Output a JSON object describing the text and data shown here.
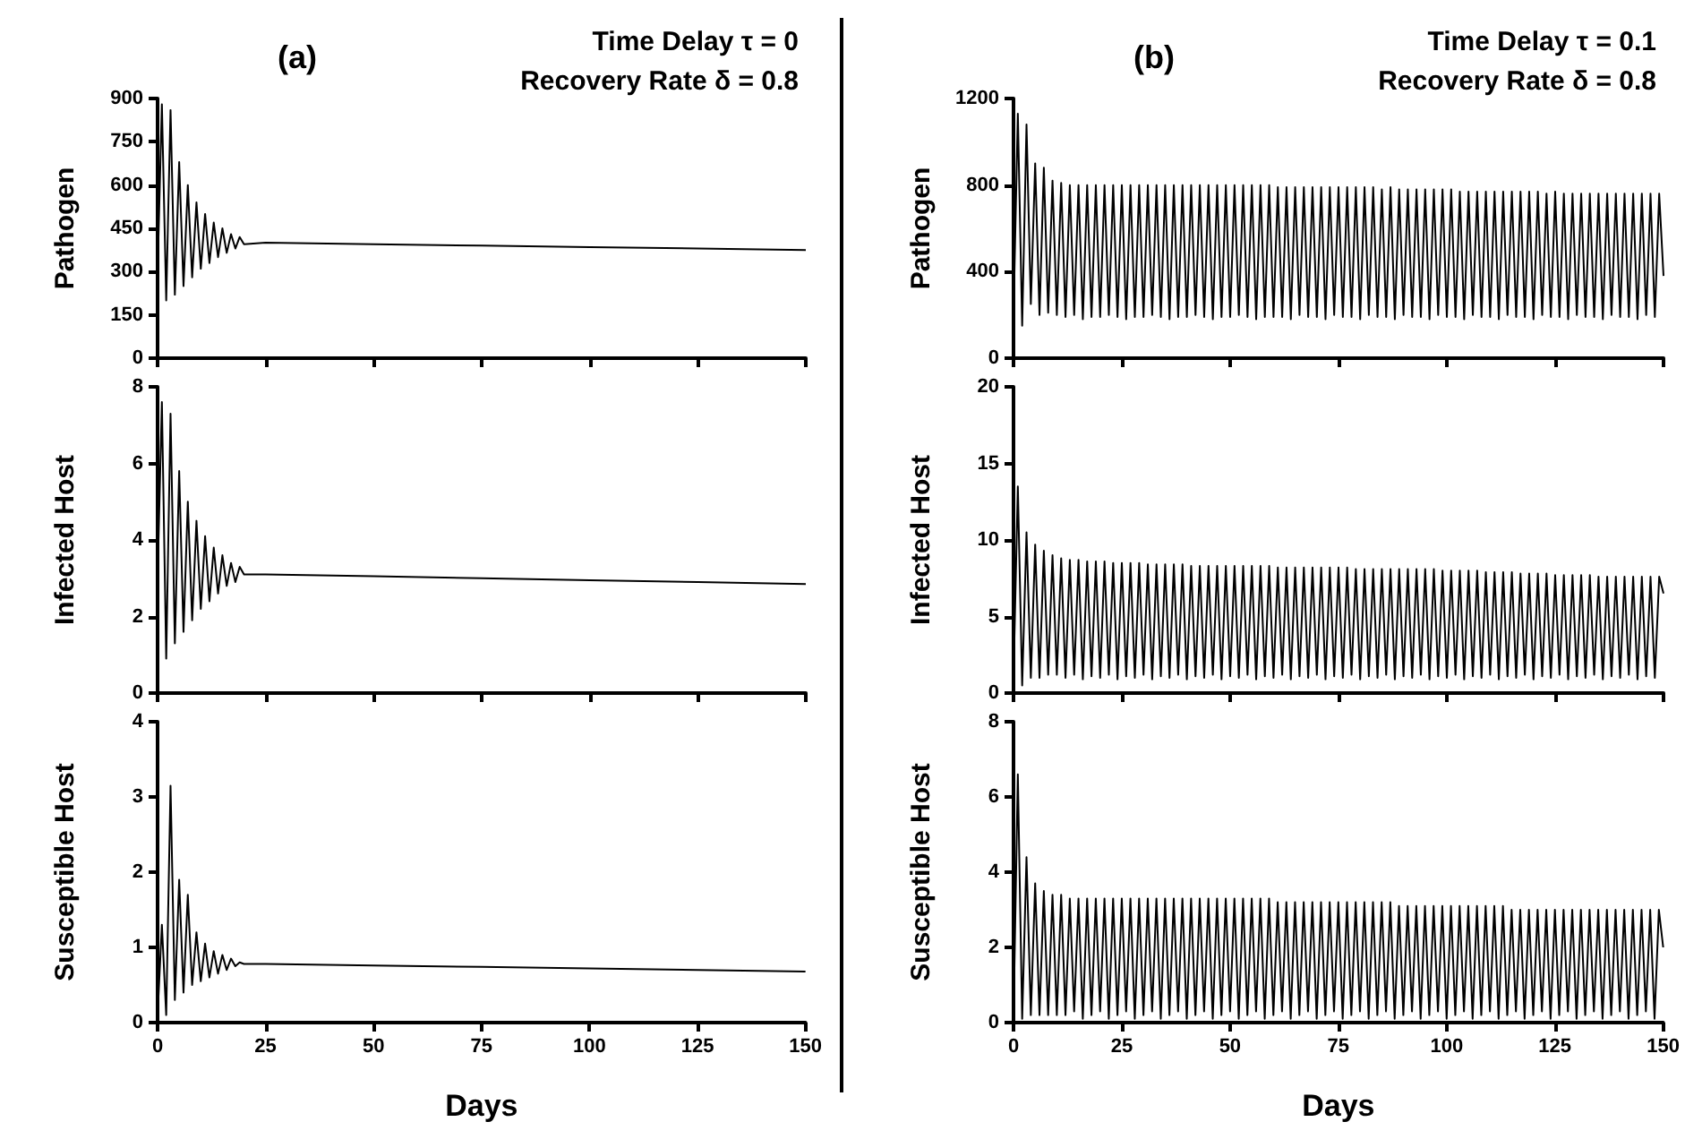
{
  "chart_data": [
    {
      "type": "line",
      "title": "(a)",
      "annotations": [
        "Time Delay τ = 0",
        "Recovery Rate δ = 0.8"
      ],
      "ylabel": "Pathogen",
      "xlim": [
        0,
        150
      ],
      "xticks": [
        0,
        25,
        50,
        75,
        100,
        125,
        150
      ],
      "ylim": [
        0,
        900
      ],
      "yticks": [
        0,
        150,
        300,
        450,
        600,
        750,
        900
      ],
      "tick_labels": "y",
      "series": [
        {
          "color": "#000000",
          "x": [
            0,
            1,
            2,
            3,
            4,
            5,
            6,
            7,
            8,
            9,
            10,
            11,
            12,
            13,
            14,
            15,
            16,
            17,
            18,
            19,
            20,
            25,
            50,
            75,
            100,
            125,
            150
          ],
          "values": [
            300,
            880,
            200,
            860,
            220,
            680,
            250,
            600,
            280,
            540,
            310,
            500,
            330,
            470,
            350,
            450,
            365,
            430,
            380,
            420,
            395,
            400,
            395,
            390,
            385,
            380,
            375
          ]
        }
      ]
    },
    {
      "type": "line",
      "title": "(b)",
      "annotations": [
        "Time Delay τ = 0.1",
        "Recovery Rate δ = 0.8"
      ],
      "ylabel": "Pathogen",
      "xlim": [
        0,
        150
      ],
      "xticks": [
        0,
        25,
        50,
        75,
        100,
        125,
        150
      ],
      "ylim": [
        0,
        1200
      ],
      "yticks": [
        0,
        400,
        800,
        1200
      ],
      "tick_labels": "y",
      "series": [
        {
          "color": "#000000",
          "x": [
            0,
            1,
            2,
            3,
            4,
            5,
            6,
            7,
            8,
            9,
            10,
            11,
            12,
            13,
            14,
            15,
            16,
            17,
            18,
            19,
            20,
            21,
            22,
            23,
            24,
            25,
            26,
            27,
            28,
            29,
            30,
            31,
            32,
            33,
            34,
            35,
            36,
            37,
            38,
            39,
            40,
            41,
            42,
            43,
            44,
            45,
            46,
            47,
            48,
            49,
            50,
            51,
            52,
            53,
            54,
            55,
            56,
            57,
            58,
            59,
            60,
            61,
            62,
            63,
            64,
            65,
            66,
            67,
            68,
            69,
            70,
            71,
            72,
            73,
            74,
            75,
            76,
            77,
            78,
            79,
            80,
            81,
            82,
            83,
            84,
            85,
            86,
            87,
            88,
            89,
            90,
            91,
            92,
            93,
            94,
            95,
            96,
            97,
            98,
            99,
            100,
            101,
            102,
            103,
            104,
            105,
            106,
            107,
            108,
            109,
            110,
            111,
            112,
            113,
            114,
            115,
            116,
            117,
            118,
            119,
            120,
            121,
            122,
            123,
            124,
            125,
            126,
            127,
            128,
            129,
            130,
            131,
            132,
            133,
            134,
            135,
            136,
            137,
            138,
            139,
            140,
            141,
            142,
            143,
            144,
            145,
            146,
            147,
            148,
            149,
            150
          ],
          "values": [
            200,
            1130,
            150,
            1080,
            250,
            900,
            200,
            880,
            210,
            820,
            200,
            810,
            190,
            800,
            200,
            800,
            180,
            800,
            190,
            800,
            190,
            800,
            200,
            800,
            190,
            800,
            180,
            800,
            190,
            800,
            190,
            800,
            200,
            800,
            190,
            800,
            180,
            800,
            190,
            800,
            190,
            800,
            200,
            800,
            190,
            800,
            180,
            800,
            190,
            800,
            190,
            800,
            200,
            800,
            190,
            800,
            180,
            800,
            190,
            800,
            190,
            790,
            190,
            790,
            180,
            790,
            200,
            790,
            190,
            790,
            190,
            790,
            180,
            790,
            200,
            790,
            190,
            790,
            190,
            790,
            180,
            790,
            200,
            790,
            190,
            780,
            190,
            790,
            180,
            780,
            200,
            780,
            190,
            780,
            190,
            780,
            180,
            780,
            200,
            780,
            190,
            780,
            190,
            770,
            180,
            770,
            200,
            770,
            190,
            770,
            190,
            770,
            180,
            770,
            200,
            770,
            190,
            770,
            190,
            770,
            180,
            770,
            200,
            760,
            190,
            770,
            190,
            760,
            180,
            760,
            200,
            760,
            190,
            760,
            190,
            760,
            180,
            760,
            200,
            760,
            190,
            760,
            190,
            760,
            180,
            760,
            200,
            760,
            190,
            760,
            380
          ]
        }
      ]
    },
    {
      "type": "line",
      "ylabel": "Infected Host",
      "xlim": [
        0,
        150
      ],
      "xticks": [
        0,
        25,
        50,
        75,
        100,
        125,
        150
      ],
      "ylim": [
        0,
        8
      ],
      "yticks": [
        0,
        2,
        4,
        6,
        8
      ],
      "tick_labels": "y",
      "series": [
        {
          "color": "#000000",
          "x": [
            0,
            1,
            2,
            3,
            4,
            5,
            6,
            7,
            8,
            9,
            10,
            11,
            12,
            13,
            14,
            15,
            16,
            17,
            18,
            19,
            20,
            25,
            50,
            75,
            100,
            125,
            150
          ],
          "values": [
            3,
            7.6,
            0.9,
            7.3,
            1.3,
            5.8,
            1.6,
            5.0,
            1.9,
            4.5,
            2.2,
            4.1,
            2.4,
            3.8,
            2.6,
            3.6,
            2.8,
            3.4,
            2.9,
            3.3,
            3.1,
            3.1,
            3.05,
            3.0,
            2.95,
            2.9,
            2.85
          ]
        }
      ]
    },
    {
      "type": "line",
      "ylabel": "Infected Host",
      "xlim": [
        0,
        150
      ],
      "xticks": [
        0,
        25,
        50,
        75,
        100,
        125,
        150
      ],
      "ylim": [
        0,
        20
      ],
      "yticks": [
        0,
        5,
        10,
        15,
        20
      ],
      "tick_labels": "y",
      "series": [
        {
          "color": "#000000",
          "x": [
            0,
            1,
            2,
            3,
            4,
            5,
            6,
            7,
            8,
            9,
            10,
            11,
            12,
            13,
            14,
            15,
            16,
            17,
            18,
            19,
            20,
            21,
            22,
            23,
            24,
            25,
            26,
            27,
            28,
            29,
            30,
            31,
            32,
            33,
            34,
            35,
            36,
            37,
            38,
            39,
            40,
            41,
            42,
            43,
            44,
            45,
            46,
            47,
            48,
            49,
            50,
            51,
            52,
            53,
            54,
            55,
            56,
            57,
            58,
            59,
            60,
            61,
            62,
            63,
            64,
            65,
            66,
            67,
            68,
            69,
            70,
            71,
            72,
            73,
            74,
            75,
            76,
            77,
            78,
            79,
            80,
            81,
            82,
            83,
            84,
            85,
            86,
            87,
            88,
            89,
            90,
            91,
            92,
            93,
            94,
            95,
            96,
            97,
            98,
            99,
            100,
            101,
            102,
            103,
            104,
            105,
            106,
            107,
            108,
            109,
            110,
            111,
            112,
            113,
            114,
            115,
            116,
            117,
            118,
            119,
            120,
            121,
            122,
            123,
            124,
            125,
            126,
            127,
            128,
            129,
            130,
            131,
            132,
            133,
            134,
            135,
            136,
            137,
            138,
            139,
            140,
            141,
            142,
            143,
            144,
            145,
            146,
            147,
            148,
            149,
            150
          ],
          "values": [
            1,
            13.5,
            0.5,
            10.5,
            1,
            9.7,
            1,
            9.3,
            1.2,
            9,
            1.2,
            8.8,
            1.0,
            8.7,
            1.2,
            8.7,
            0.9,
            8.6,
            1.1,
            8.6,
            1.0,
            8.6,
            1.2,
            8.5,
            0.9,
            8.5,
            1.1,
            8.5,
            1.0,
            8.5,
            1.2,
            8.4,
            0.9,
            8.4,
            1.1,
            8.4,
            1.0,
            8.4,
            1.2,
            8.4,
            0.9,
            8.3,
            1.1,
            8.3,
            1.0,
            8.3,
            1.2,
            8.3,
            0.9,
            8.3,
            1.1,
            8.3,
            1.0,
            8.3,
            1.2,
            8.3,
            0.9,
            8.3,
            1.1,
            8.3,
            1.0,
            8.2,
            1.2,
            8.2,
            0.9,
            8.2,
            1.1,
            8.2,
            1.0,
            8.2,
            1.2,
            8.2,
            0.9,
            8.2,
            1.1,
            8.2,
            1.0,
            8.2,
            1.2,
            8.1,
            0.9,
            8.1,
            1.1,
            8.1,
            1.0,
            8.1,
            1.2,
            8.1,
            0.9,
            8.1,
            1.1,
            8.1,
            1.0,
            8.1,
            1.2,
            8.1,
            0.9,
            8.1,
            1.1,
            8.0,
            1.0,
            8.0,
            1.2,
            8.0,
            0.9,
            8.0,
            1.1,
            8.0,
            1.0,
            7.9,
            1.2,
            7.9,
            0.9,
            7.9,
            1.1,
            7.9,
            1.0,
            7.8,
            1.2,
            7.8,
            0.9,
            7.8,
            1.1,
            7.8,
            1.0,
            7.7,
            1.2,
            7.7,
            0.9,
            7.7,
            1.1,
            7.7,
            1.0,
            7.7,
            1.2,
            7.6,
            0.9,
            7.6,
            1.1,
            7.6,
            1.0,
            7.6,
            1.2,
            7.6,
            0.9,
            7.6,
            1.1,
            7.6,
            1.0,
            7.6,
            6.5
          ]
        }
      ]
    },
    {
      "type": "line",
      "ylabel": "Susceptible Host",
      "xlabel": "Days",
      "xlim": [
        0,
        150
      ],
      "xticks": [
        0,
        25,
        50,
        75,
        100,
        125,
        150
      ],
      "ylim": [
        0,
        4
      ],
      "yticks": [
        0,
        1,
        2,
        3,
        4
      ],
      "series": [
        {
          "color": "#000000",
          "x": [
            0,
            1,
            2,
            3,
            4,
            5,
            6,
            7,
            8,
            9,
            10,
            11,
            12,
            13,
            14,
            15,
            16,
            17,
            18,
            19,
            20,
            25,
            50,
            75,
            100,
            125,
            150
          ],
          "values": [
            0.1,
            1.3,
            0.1,
            3.15,
            0.3,
            1.9,
            0.4,
            1.7,
            0.5,
            1.2,
            0.55,
            1.05,
            0.6,
            0.95,
            0.65,
            0.9,
            0.7,
            0.85,
            0.75,
            0.8,
            0.78,
            0.78,
            0.76,
            0.74,
            0.72,
            0.7,
            0.68
          ]
        }
      ]
    },
    {
      "type": "line",
      "ylabel": "Susceptible Host",
      "xlabel": "Days",
      "xlim": [
        0,
        150
      ],
      "xticks": [
        0,
        25,
        50,
        75,
        100,
        125,
        150
      ],
      "ylim": [
        0,
        8
      ],
      "yticks": [
        0,
        2,
        4,
        6,
        8
      ],
      "series": [
        {
          "color": "#000000",
          "x": [
            0,
            1,
            2,
            3,
            4,
            5,
            6,
            7,
            8,
            9,
            10,
            11,
            12,
            13,
            14,
            15,
            16,
            17,
            18,
            19,
            20,
            21,
            22,
            23,
            24,
            25,
            26,
            27,
            28,
            29,
            30,
            31,
            32,
            33,
            34,
            35,
            36,
            37,
            38,
            39,
            40,
            41,
            42,
            43,
            44,
            45,
            46,
            47,
            48,
            49,
            50,
            51,
            52,
            53,
            54,
            55,
            56,
            57,
            58,
            59,
            60,
            61,
            62,
            63,
            64,
            65,
            66,
            67,
            68,
            69,
            70,
            71,
            72,
            73,
            74,
            75,
            76,
            77,
            78,
            79,
            80,
            81,
            82,
            83,
            84,
            85,
            86,
            87,
            88,
            89,
            90,
            91,
            92,
            93,
            94,
            95,
            96,
            97,
            98,
            99,
            100,
            101,
            102,
            103,
            104,
            105,
            106,
            107,
            108,
            109,
            110,
            111,
            112,
            113,
            114,
            115,
            116,
            117,
            118,
            119,
            120,
            121,
            122,
            123,
            124,
            125,
            126,
            127,
            128,
            129,
            130,
            131,
            132,
            133,
            134,
            135,
            136,
            137,
            138,
            139,
            140,
            141,
            142,
            143,
            144,
            145,
            146,
            147,
            148,
            149,
            150
          ],
          "values": [
            0.1,
            6.6,
            0.1,
            4.4,
            0.2,
            3.7,
            0.2,
            3.5,
            0.2,
            3.4,
            0.2,
            3.4,
            0.2,
            3.3,
            0.3,
            3.3,
            0.1,
            3.3,
            0.2,
            3.3,
            0.3,
            3.3,
            0.1,
            3.3,
            0.2,
            3.3,
            0.3,
            3.3,
            0.1,
            3.3,
            0.2,
            3.3,
            0.3,
            3.3,
            0.1,
            3.3,
            0.2,
            3.3,
            0.3,
            3.3,
            0.1,
            3.3,
            0.2,
            3.3,
            0.3,
            3.3,
            0.1,
            3.3,
            0.2,
            3.3,
            0.3,
            3.3,
            0.1,
            3.3,
            0.2,
            3.3,
            0.3,
            3.3,
            0.1,
            3.3,
            0.2,
            3.2,
            0.3,
            3.2,
            0.1,
            3.2,
            0.2,
            3.2,
            0.3,
            3.2,
            0.1,
            3.2,
            0.2,
            3.2,
            0.3,
            3.2,
            0.1,
            3.2,
            0.2,
            3.2,
            0.3,
            3.2,
            0.1,
            3.2,
            0.2,
            3.2,
            0.3,
            3.2,
            0.1,
            3.1,
            0.2,
            3.1,
            0.3,
            3.1,
            0.1,
            3.1,
            0.2,
            3.1,
            0.3,
            3.1,
            0.1,
            3.1,
            0.2,
            3.1,
            0.3,
            3.1,
            0.1,
            3.1,
            0.2,
            3.1,
            0.3,
            3.1,
            0.1,
            3.1,
            0.2,
            3.0,
            0.3,
            3.0,
            0.1,
            3.0,
            0.2,
            3.0,
            0.3,
            3.0,
            0.1,
            3.0,
            0.2,
            3.0,
            0.3,
            3.0,
            0.1,
            3.0,
            0.2,
            3.0,
            0.3,
            3.0,
            0.1,
            3.0,
            0.2,
            3.0,
            0.3,
            3.0,
            0.1,
            3.0,
            0.2,
            3.0,
            0.3,
            3.0,
            0.1,
            3.0,
            2.0
          ]
        }
      ]
    }
  ]
}
